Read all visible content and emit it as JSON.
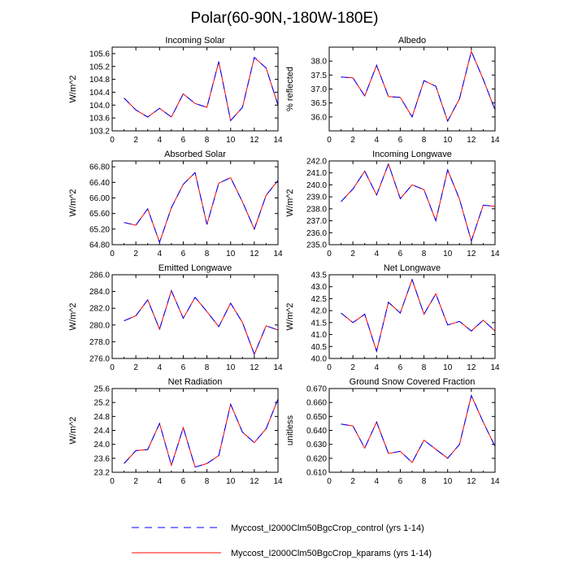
{
  "title": "Polar(60-90N,-180W-180E)",
  "legend": [
    {
      "label": "Myccost_I2000Clm50BgcCrop_control (yrs 1-14)",
      "color": "#0000ff",
      "style": "dashed"
    },
    {
      "label": "Myccost_I2000Clm50BgcCrop_kparams (yrs 1-14)",
      "color": "#ff0000",
      "style": "solid"
    }
  ],
  "chart_data": [
    {
      "type": "line",
      "title": "Incoming Solar",
      "xlabel": "",
      "ylabel": "W/m^2",
      "xlim": [
        0,
        14
      ],
      "xticks": [
        0,
        2,
        4,
        6,
        8,
        10,
        12,
        14
      ],
      "ylim": [
        103.2,
        105.8
      ],
      "yticks": [
        103.2,
        103.6,
        104.0,
        104.4,
        104.8,
        105.2,
        105.6
      ],
      "decimals": 1,
      "x": [
        1,
        2,
        3,
        4,
        5,
        6,
        7,
        8,
        9,
        10,
        11,
        12,
        13,
        14
      ],
      "series": [
        {
          "name": "Myccost_I2000Clm50BgcCrop_kparams",
          "values": [
            104.22,
            103.85,
            103.63,
            103.9,
            103.63,
            104.35,
            104.05,
            103.93,
            105.35,
            103.52,
            103.93,
            105.48,
            105.15,
            104.0
          ]
        },
        {
          "name": "Myccost_I2000Clm50BgcCrop_control",
          "values": [
            104.22,
            103.85,
            103.63,
            103.9,
            103.63,
            104.35,
            104.05,
            103.93,
            105.35,
            103.52,
            103.93,
            105.48,
            105.15,
            104.0
          ]
        }
      ]
    },
    {
      "type": "line",
      "title": "Albedo",
      "xlabel": "",
      "ylabel": "% reflected",
      "xlim": [
        0,
        14
      ],
      "xticks": [
        0,
        2,
        4,
        6,
        8,
        10,
        12,
        14
      ],
      "ylim": [
        35.5,
        38.5
      ],
      "yticks": [
        36.0,
        36.5,
        37.0,
        37.5,
        38.0
      ],
      "decimals": 1,
      "x": [
        1,
        2,
        3,
        4,
        5,
        6,
        7,
        8,
        9,
        10,
        11,
        12,
        13,
        14
      ],
      "series": [
        {
          "name": "Myccost_I2000Clm50BgcCrop_kparams",
          "values": [
            37.43,
            37.4,
            36.75,
            37.85,
            36.73,
            36.7,
            36.0,
            37.3,
            37.1,
            35.85,
            36.65,
            38.35,
            37.35,
            36.25
          ]
        },
        {
          "name": "Myccost_I2000Clm50BgcCrop_control",
          "values": [
            37.43,
            37.4,
            36.75,
            37.85,
            36.73,
            36.7,
            36.0,
            37.3,
            37.1,
            35.85,
            36.65,
            38.35,
            37.35,
            36.25
          ]
        }
      ]
    },
    {
      "type": "line",
      "title": "Absorbed Solar",
      "xlabel": "",
      "ylabel": "W/m^2",
      "xlim": [
        0,
        14
      ],
      "xticks": [
        0,
        2,
        4,
        6,
        8,
        10,
        12,
        14
      ],
      "ylim": [
        64.8,
        66.95
      ],
      "yticks": [
        64.8,
        65.2,
        65.6,
        66.0,
        66.4,
        66.8
      ],
      "decimals": 2,
      "x": [
        1,
        2,
        3,
        4,
        5,
        6,
        7,
        8,
        9,
        10,
        11,
        12,
        13,
        14
      ],
      "series": [
        {
          "name": "Myccost_I2000Clm50BgcCrop_kparams",
          "values": [
            65.37,
            65.3,
            65.72,
            64.86,
            65.75,
            66.35,
            66.65,
            65.32,
            66.38,
            66.52,
            65.9,
            65.2,
            66.07,
            66.45
          ]
        },
        {
          "name": "Myccost_I2000Clm50BgcCrop_control",
          "values": [
            65.37,
            65.3,
            65.72,
            64.86,
            65.75,
            66.35,
            66.65,
            65.32,
            66.38,
            66.52,
            65.9,
            65.2,
            66.07,
            66.45
          ]
        }
      ]
    },
    {
      "type": "line",
      "title": "Incoming Longwave",
      "xlabel": "",
      "ylabel": "W/m^2",
      "xlim": [
        0,
        14
      ],
      "xticks": [
        0,
        2,
        4,
        6,
        8,
        10,
        12,
        14
      ],
      "ylim": [
        235.0,
        242.0
      ],
      "yticks": [
        235.0,
        236.0,
        237.0,
        238.0,
        239.0,
        240.0,
        241.0,
        242.0
      ],
      "decimals": 1,
      "x": [
        1,
        2,
        3,
        4,
        5,
        6,
        7,
        8,
        9,
        10,
        11,
        12,
        13,
        14
      ],
      "series": [
        {
          "name": "Myccost_I2000Clm50BgcCrop_kparams",
          "values": [
            238.6,
            239.65,
            241.15,
            239.15,
            241.75,
            238.85,
            240.0,
            239.6,
            237.0,
            241.25,
            238.8,
            235.3,
            238.3,
            238.2
          ]
        },
        {
          "name": "Myccost_I2000Clm50BgcCrop_control",
          "values": [
            238.6,
            239.65,
            241.15,
            239.15,
            241.75,
            238.85,
            240.0,
            239.6,
            237.0,
            241.25,
            238.8,
            235.3,
            238.3,
            238.2
          ]
        }
      ]
    },
    {
      "type": "line",
      "title": "Emitted Longwave",
      "xlabel": "",
      "ylabel": "W/m^2",
      "xlim": [
        0,
        14
      ],
      "xticks": [
        0,
        2,
        4,
        6,
        8,
        10,
        12,
        14
      ],
      "ylim": [
        276.0,
        286.0
      ],
      "yticks": [
        276.0,
        278.0,
        280.0,
        282.0,
        284.0,
        286.0
      ],
      "decimals": 1,
      "x": [
        1,
        2,
        3,
        4,
        5,
        6,
        7,
        8,
        9,
        10,
        11,
        12,
        13,
        14
      ],
      "series": [
        {
          "name": "Myccost_I2000Clm50BgcCrop_kparams",
          "values": [
            280.5,
            281.1,
            283.0,
            279.5,
            284.1,
            280.8,
            283.3,
            281.6,
            279.8,
            282.6,
            280.3,
            276.5,
            279.9,
            279.4
          ]
        },
        {
          "name": "Myccost_I2000Clm50BgcCrop_control",
          "values": [
            280.5,
            281.1,
            283.0,
            279.5,
            284.1,
            280.8,
            283.3,
            281.6,
            279.8,
            282.6,
            280.3,
            276.5,
            279.9,
            279.4
          ]
        }
      ]
    },
    {
      "type": "line",
      "title": "Net Longwave",
      "xlabel": "",
      "ylabel": "W/m^2",
      "xlim": [
        0,
        14
      ],
      "xticks": [
        0,
        2,
        4,
        6,
        8,
        10,
        12,
        14
      ],
      "ylim": [
        40.0,
        43.5
      ],
      "yticks": [
        40.0,
        40.5,
        41.0,
        41.5,
        42.0,
        42.5,
        43.0,
        43.5
      ],
      "decimals": 1,
      "x": [
        1,
        2,
        3,
        4,
        5,
        6,
        7,
        8,
        9,
        10,
        11,
        12,
        13,
        14
      ],
      "series": [
        {
          "name": "Myccost_I2000Clm50BgcCrop_kparams",
          "values": [
            41.9,
            41.5,
            41.85,
            40.3,
            42.35,
            41.9,
            43.3,
            41.85,
            42.7,
            41.4,
            41.55,
            41.15,
            41.6,
            41.15
          ]
        },
        {
          "name": "Myccost_I2000Clm50BgcCrop_control",
          "values": [
            41.9,
            41.5,
            41.85,
            40.3,
            42.35,
            41.9,
            43.3,
            41.85,
            42.7,
            41.4,
            41.55,
            41.15,
            41.6,
            41.15
          ]
        }
      ]
    },
    {
      "type": "line",
      "title": "Net Radiation",
      "xlabel": "",
      "ylabel": "W/m^2",
      "xlim": [
        0,
        14
      ],
      "xticks": [
        0,
        2,
        4,
        6,
        8,
        10,
        12,
        14
      ],
      "ylim": [
        23.2,
        25.6
      ],
      "yticks": [
        23.2,
        23.6,
        24.0,
        24.4,
        24.8,
        25.2,
        25.6
      ],
      "decimals": 1,
      "x": [
        1,
        2,
        3,
        4,
        5,
        6,
        7,
        8,
        9,
        10,
        11,
        12,
        13,
        14
      ],
      "series": [
        {
          "name": "Myccost_I2000Clm50BgcCrop_kparams",
          "values": [
            23.45,
            23.82,
            23.85,
            24.6,
            23.4,
            24.48,
            23.35,
            23.45,
            23.68,
            25.15,
            24.35,
            24.05,
            24.45,
            25.3
          ]
        },
        {
          "name": "Myccost_I2000Clm50BgcCrop_control",
          "values": [
            23.45,
            23.82,
            23.85,
            24.6,
            23.4,
            24.48,
            23.35,
            23.45,
            23.68,
            25.15,
            24.35,
            24.05,
            24.45,
            25.3
          ]
        }
      ]
    },
    {
      "type": "line",
      "title": "Ground Snow Covered Fraction",
      "xlabel": "",
      "ylabel": "unitless",
      "xlim": [
        0,
        14
      ],
      "xticks": [
        0,
        2,
        4,
        6,
        8,
        10,
        12,
        14
      ],
      "ylim": [
        0.61,
        0.67
      ],
      "yticks": [
        0.61,
        0.62,
        0.63,
        0.64,
        0.65,
        0.66,
        0.67
      ],
      "decimals": 3,
      "x": [
        1,
        2,
        3,
        4,
        5,
        6,
        7,
        8,
        9,
        10,
        11,
        12,
        13,
        14
      ],
      "series": [
        {
          "name": "Myccost_I2000Clm50BgcCrop_kparams",
          "values": [
            0.6445,
            0.6432,
            0.6273,
            0.646,
            0.6235,
            0.625,
            0.617,
            0.633,
            0.6265,
            0.62,
            0.63,
            0.665,
            0.646,
            0.6285
          ]
        },
        {
          "name": "Myccost_I2000Clm50BgcCrop_control",
          "values": [
            0.6445,
            0.6432,
            0.6273,
            0.646,
            0.6235,
            0.625,
            0.617,
            0.633,
            0.6265,
            0.62,
            0.63,
            0.665,
            0.646,
            0.6285
          ]
        }
      ]
    }
  ]
}
